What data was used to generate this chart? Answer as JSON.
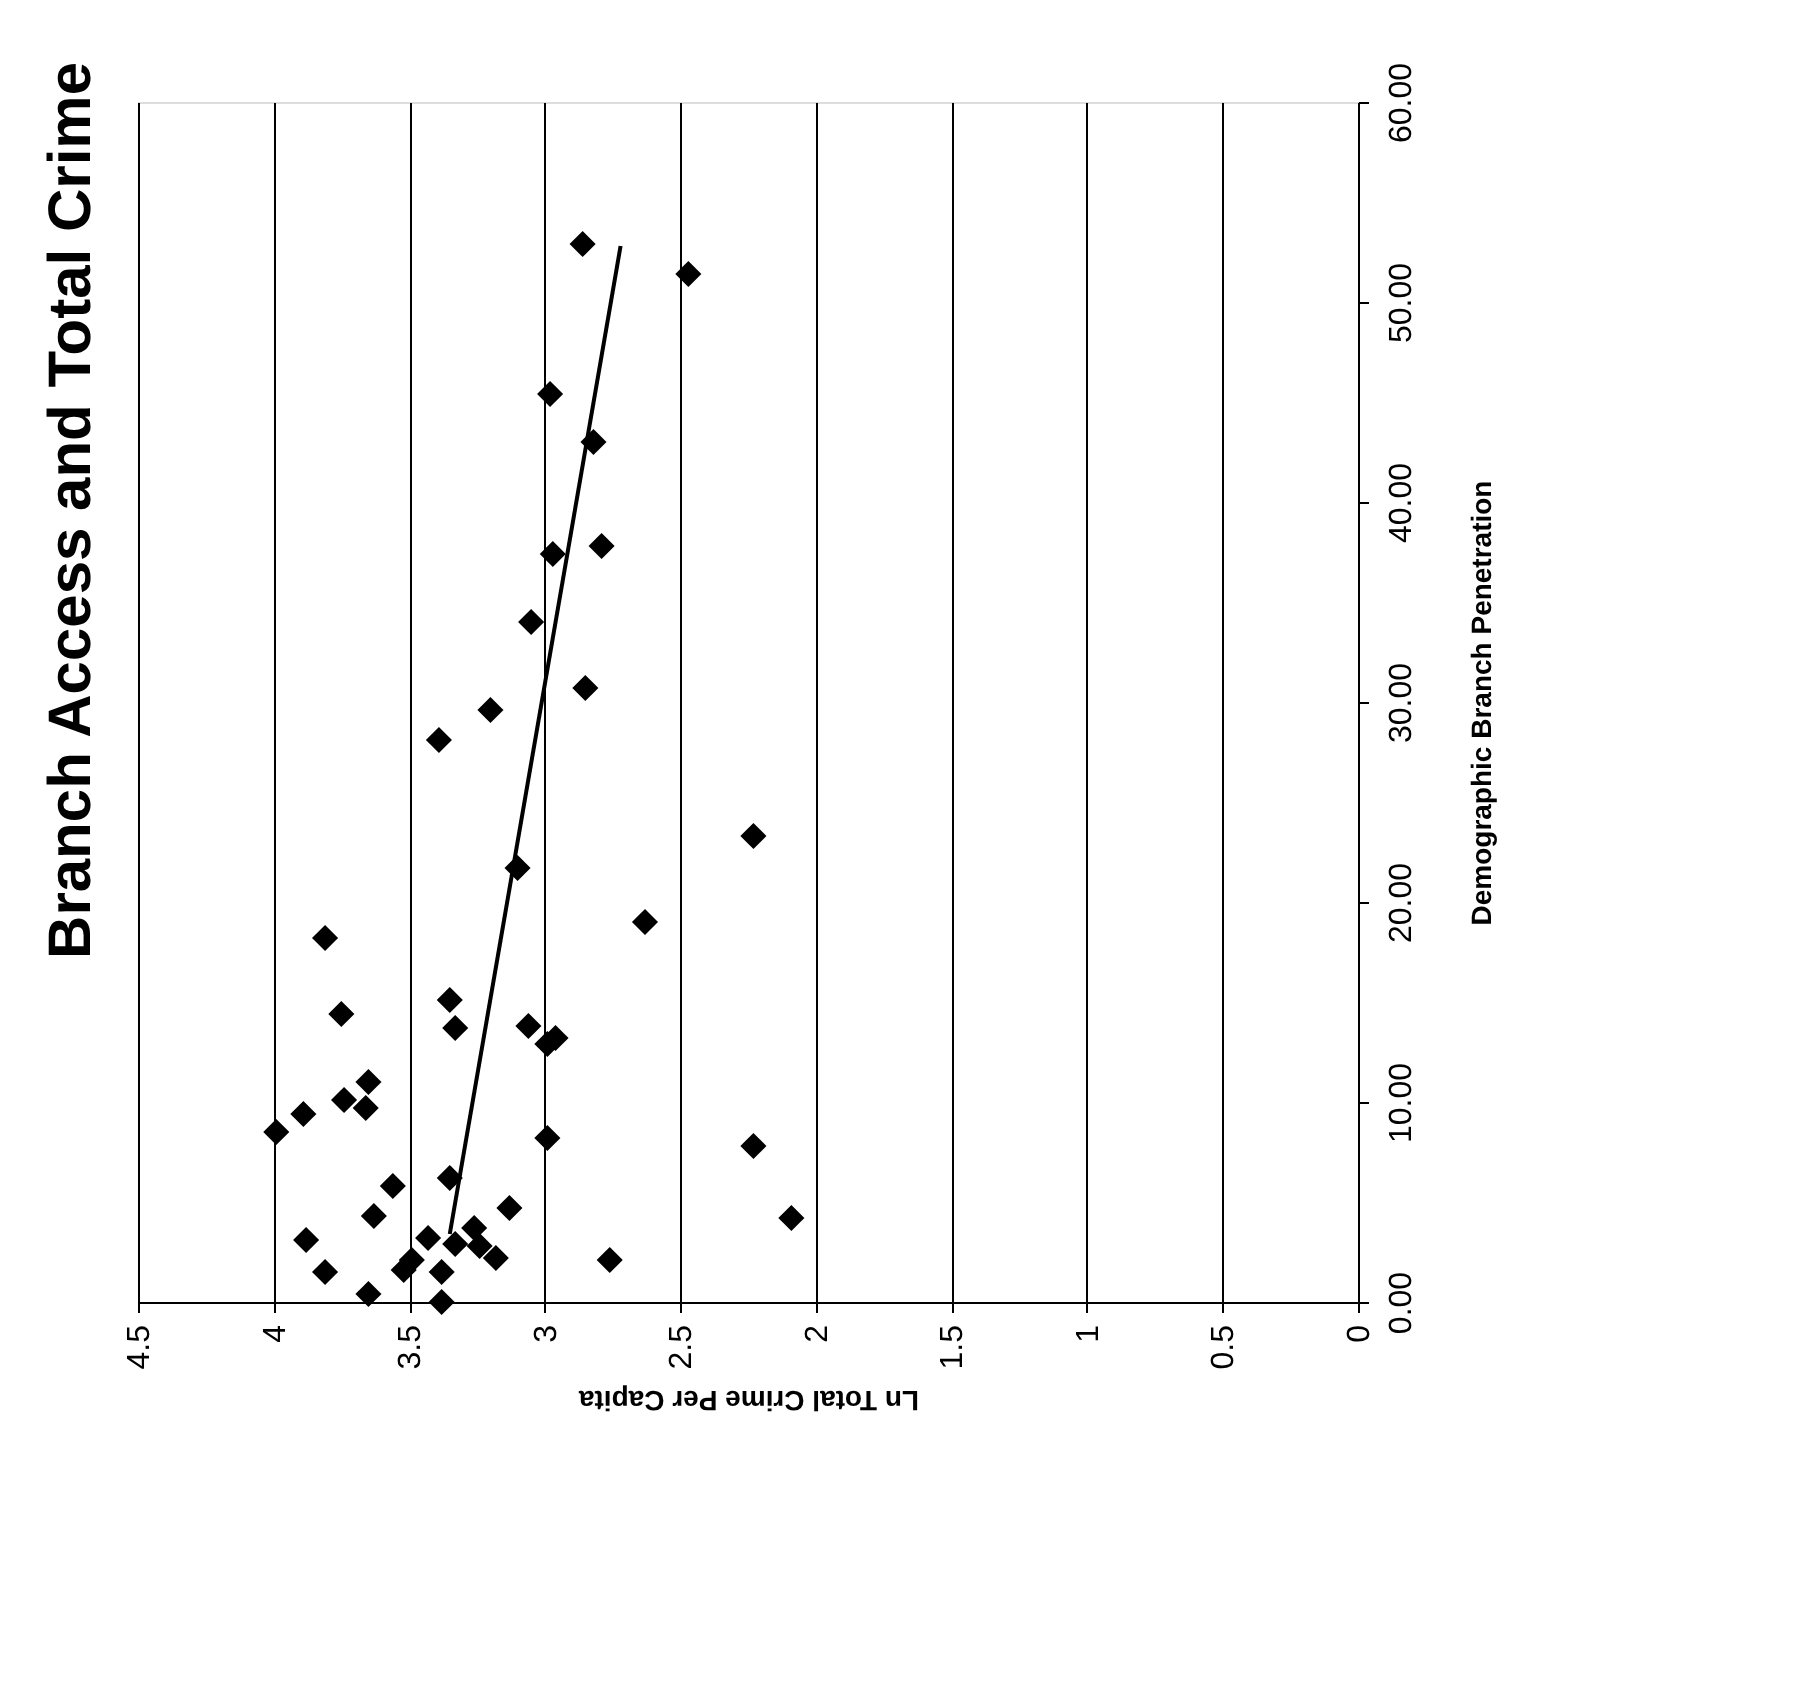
{
  "chart_data": {
    "type": "scatter",
    "title": "Branch Access and Total Crime",
    "xlabel": "Ln Total Crime Per Capita",
    "ylabel": "Demographic Branch Penetration",
    "xlim": [
      4.5,
      0
    ],
    "xticks": [
      4.5,
      4,
      3.5,
      3,
      2.5,
      2,
      1.5,
      1,
      0.5,
      0
    ],
    "ylim": [
      0,
      60
    ],
    "yticks": [
      {
        "value": 0,
        "label": "0.00"
      },
      {
        "value": 10,
        "label": "10.00"
      },
      {
        "value": 20,
        "label": "20.00"
      },
      {
        "value": 30,
        "label": "30.00"
      },
      {
        "value": 40,
        "label": "40.00"
      },
      {
        "value": 50,
        "label": "50.00"
      },
      {
        "value": 60,
        "label": "60.00"
      }
    ],
    "grid": "x",
    "marker": "diamond",
    "series": [
      {
        "color": "#000000",
        "x": [
          3.1,
          2.63,
          3.81,
          3.35,
          3.33,
          3.75,
          3.06,
          2.96,
          2.99,
          3.65,
          3.74,
          3.66,
          3.89,
          3.99,
          2.99,
          3.35,
          3.56,
          3.13,
          3.63,
          3.88,
          3.43,
          3.26,
          3.33,
          3.18,
          3.24,
          3.81,
          3.52,
          3.49,
          3.38,
          3.65,
          3.38,
          2.76,
          2.23,
          2.23,
          2.09,
          2.86,
          2.47,
          2.98,
          2.82,
          2.97,
          2.79,
          3.05,
          2.85,
          3.2,
          3.39
        ],
        "values": [
          21.7,
          19.0,
          18.2,
          15.1,
          13.7,
          14.4,
          13.8,
          13.2,
          12.9,
          11.0,
          10.1,
          9.7,
          9.4,
          8.5,
          8.2,
          6.2,
          5.8,
          4.7,
          4.3,
          3.1,
          3.2,
          3.7,
          2.9,
          2.2,
          2.8,
          1.5,
          1.6,
          2.1,
          1.5,
          0.4,
          0.0,
          2.1,
          23.3,
          7.8,
          4.2,
          52.9,
          51.4,
          45.4,
          43.0,
          37.4,
          37.8,
          34.0,
          30.7,
          29.6,
          28.1
        ]
      },
      {
        "type": "line",
        "marker": "none",
        "color": "#000000",
        "x": [
          3.35,
          2.72
        ],
        "values": [
          3.4,
          52.8
        ]
      }
    ]
  }
}
